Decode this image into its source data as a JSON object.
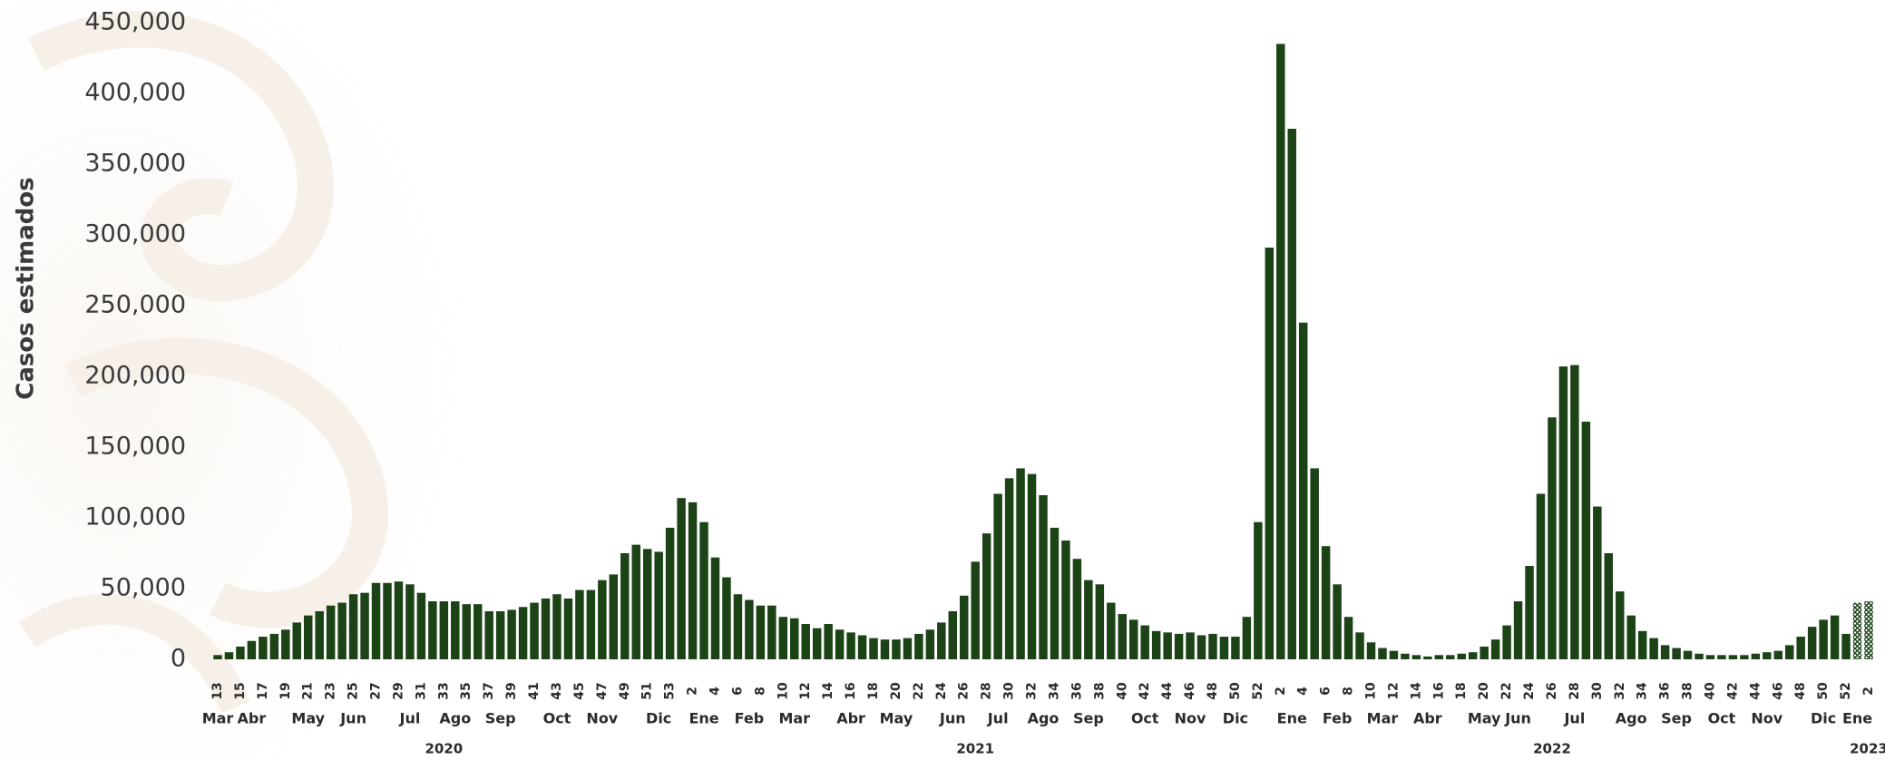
{
  "chart_data": {
    "type": "bar",
    "y_label": "Casos estimados",
    "color": "#1b4316",
    "ylim": [
      0,
      450000
    ],
    "yticks": [
      0,
      {
        "value": 50000,
        "label": "50,000"
      },
      {
        "value": 100000,
        "label": "100,000"
      },
      {
        "value": 150000,
        "label": "150,000"
      },
      {
        "value": 200000,
        "label": "200,000"
      },
      {
        "value": 250000,
        "label": "250,000"
      },
      {
        "value": 300000,
        "label": "300,000"
      },
      {
        "value": 350000,
        "label": "350,000"
      },
      {
        "value": 400000,
        "label": "400,000"
      },
      {
        "value": 450000,
        "label": "450,000"
      }
    ],
    "grid": false,
    "categories": [
      "13",
      null,
      "15",
      null,
      "17",
      null,
      "19",
      null,
      "21",
      null,
      "23",
      null,
      "25",
      null,
      "27",
      null,
      "29",
      null,
      "31",
      null,
      "33",
      null,
      "35",
      null,
      "37",
      null,
      "39",
      null,
      "41",
      null,
      "43",
      null,
      "45",
      null,
      "47",
      null,
      "49",
      null,
      "51",
      null,
      "53",
      null,
      "2",
      null,
      "4",
      null,
      "6",
      null,
      "8",
      null,
      "10",
      null,
      "12",
      null,
      "14",
      null,
      "16",
      null,
      "18",
      null,
      "20",
      null,
      "22",
      null,
      "24",
      null,
      "26",
      null,
      "28",
      null,
      "30",
      null,
      "32",
      null,
      "34",
      null,
      "36",
      null,
      "38",
      null,
      "40",
      null,
      "42",
      null,
      "44",
      null,
      "46",
      null,
      "48",
      null,
      "50",
      null,
      "52",
      null,
      "2",
      null,
      "4",
      null,
      "6",
      null,
      "8",
      null,
      "10",
      null,
      "12",
      null,
      "14",
      null,
      "16",
      null,
      "18",
      null,
      "20",
      null,
      "22",
      null,
      "24",
      null,
      "26",
      null,
      "28",
      null,
      "30",
      null,
      "32",
      null,
      "34",
      null,
      "36",
      null,
      "38",
      null,
      "40",
      null,
      "42",
      null,
      "44",
      null,
      "46",
      null,
      "48",
      null,
      "50",
      null,
      "52",
      null,
      "2"
    ],
    "months": [
      "Mar",
      null,
      null,
      "Abr",
      null,
      null,
      null,
      null,
      "May",
      null,
      null,
      null,
      "Jun",
      null,
      null,
      null,
      null,
      "Jul",
      null,
      null,
      null,
      "Ago",
      null,
      null,
      null,
      "Sep",
      null,
      null,
      null,
      null,
      "Oct",
      null,
      null,
      null,
      "Nov",
      null,
      null,
      null,
      null,
      "Dic",
      null,
      null,
      null,
      "Ene",
      null,
      null,
      null,
      "Feb",
      null,
      null,
      null,
      "Mar",
      null,
      null,
      null,
      null,
      "Abr",
      null,
      null,
      null,
      "May",
      null,
      null,
      null,
      null,
      "Jun",
      null,
      null,
      null,
      "Jul",
      null,
      null,
      null,
      "Ago",
      null,
      null,
      null,
      "Sep",
      null,
      null,
      null,
      null,
      "Oct",
      null,
      null,
      null,
      "Nov",
      null,
      null,
      null,
      "Dic",
      null,
      null,
      null,
      null,
      "Ene",
      null,
      null,
      null,
      "Feb",
      null,
      null,
      null,
      "Mar",
      null,
      null,
      null,
      "Abr",
      null,
      null,
      null,
      null,
      "May",
      null,
      null,
      "Jun",
      null,
      null,
      null,
      null,
      "Jul",
      null,
      null,
      null,
      null,
      "Ago",
      null,
      null,
      null,
      "Sep",
      null,
      null,
      null,
      "Oct",
      null,
      null,
      null,
      "Nov",
      null,
      null,
      null,
      null,
      "Dic",
      null,
      null,
      "Ene",
      null
    ],
    "years": [
      null,
      null,
      null,
      null,
      null,
      null,
      null,
      null,
      null,
      null,
      null,
      null,
      null,
      null,
      null,
      null,
      null,
      null,
      null,
      null,
      "2020",
      null,
      null,
      null,
      null,
      null,
      null,
      null,
      null,
      null,
      null,
      null,
      null,
      null,
      null,
      null,
      null,
      null,
      null,
      null,
      null,
      null,
      null,
      null,
      null,
      null,
      null,
      null,
      null,
      null,
      null,
      null,
      null,
      null,
      null,
      null,
      null,
      null,
      null,
      null,
      null,
      null,
      null,
      null,
      null,
      null,
      null,
      "2021",
      null,
      null,
      null,
      null,
      null,
      null,
      null,
      null,
      null,
      null,
      null,
      null,
      null,
      null,
      null,
      null,
      null,
      null,
      null,
      null,
      null,
      null,
      null,
      null,
      null,
      null,
      null,
      null,
      null,
      null,
      null,
      null,
      null,
      null,
      null,
      null,
      null,
      null,
      null,
      null,
      null,
      null,
      null,
      null,
      null,
      null,
      null,
      null,
      null,
      null,
      "2022",
      null,
      null,
      null,
      null,
      null,
      null,
      null,
      null,
      null,
      null,
      null,
      null,
      null,
      null,
      null,
      null,
      null,
      null,
      null,
      null,
      null,
      null,
      null,
      null,
      null,
      null,
      null,
      "2023"
    ],
    "values": [
      3000,
      5000,
      9000,
      13000,
      16000,
      18000,
      21000,
      26000,
      31000,
      34000,
      38000,
      40000,
      46000,
      47000,
      54000,
      54000,
      55000,
      53000,
      47000,
      41000,
      41000,
      41000,
      39000,
      39000,
      34000,
      34000,
      35000,
      37000,
      40000,
      43000,
      46000,
      43000,
      49000,
      49000,
      56000,
      60000,
      75000,
      81000,
      78000,
      76000,
      93000,
      114000,
      111000,
      97000,
      72000,
      58000,
      46000,
      42000,
      38000,
      38000,
      30000,
      29000,
      25000,
      22000,
      25000,
      21000,
      19000,
      17000,
      15000,
      14000,
      14000,
      15000,
      18000,
      21000,
      26000,
      34000,
      45000,
      69000,
      89000,
      117000,
      128000,
      135000,
      131000,
      116000,
      93000,
      84000,
      71000,
      56000,
      53000,
      40000,
      32000,
      28000,
      24000,
      20000,
      19000,
      18000,
      19000,
      17000,
      18000,
      16000,
      16000,
      30000,
      97000,
      291000,
      435000,
      375000,
      238000,
      135000,
      80000,
      53000,
      30000,
      19000,
      12000,
      8000,
      6000,
      4000,
      3000,
      2000,
      3000,
      3000,
      4000,
      5000,
      9000,
      14000,
      24000,
      41000,
      66000,
      117000,
      171000,
      207000,
      208000,
      168000,
      108000,
      75000,
      48000,
      31000,
      20000,
      15000,
      10000,
      8000,
      6000,
      4000,
      3000,
      3000,
      3000,
      3000,
      4000,
      5000,
      6000,
      10000,
      16000,
      23000,
      28000,
      31000,
      18000,
      40000,
      41000
    ],
    "hatched": [
      false,
      false,
      false,
      false,
      false,
      false,
      false,
      false,
      false,
      false,
      false,
      false,
      false,
      false,
      false,
      false,
      false,
      false,
      false,
      false,
      false,
      false,
      false,
      false,
      false,
      false,
      false,
      false,
      false,
      false,
      false,
      false,
      false,
      false,
      false,
      false,
      false,
      false,
      false,
      false,
      false,
      false,
      false,
      false,
      false,
      false,
      false,
      false,
      false,
      false,
      false,
      false,
      false,
      false,
      false,
      false,
      false,
      false,
      false,
      false,
      false,
      false,
      false,
      false,
      false,
      false,
      false,
      false,
      false,
      false,
      false,
      false,
      false,
      false,
      false,
      false,
      false,
      false,
      false,
      false,
      false,
      false,
      false,
      false,
      false,
      false,
      false,
      false,
      false,
      false,
      false,
      false,
      false,
      false,
      false,
      false,
      false,
      false,
      false,
      false,
      false,
      false,
      false,
      false,
      false,
      false,
      false,
      false,
      false,
      false,
      false,
      false,
      false,
      false,
      false,
      false,
      false,
      false,
      false,
      false,
      false,
      false,
      false,
      false,
      false,
      false,
      false,
      false,
      false,
      false,
      false,
      false,
      false,
      false,
      false,
      false,
      false,
      false,
      false,
      false,
      false,
      false,
      false,
      false,
      false,
      true,
      true
    ]
  }
}
